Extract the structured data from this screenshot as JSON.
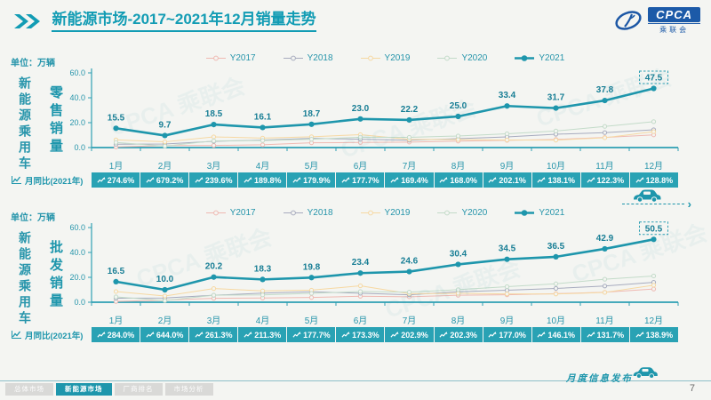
{
  "page": {
    "page_number": "7",
    "background": "#f4f5f2"
  },
  "header": {
    "title_bold": "新能源市场",
    "title_rest": "-2017~2021年12月销量走势",
    "logo_text": "CPCA",
    "logo_sub": "乘联会"
  },
  "icons": {
    "double_chevron": "»",
    "trend_up": "zigzag-arrow",
    "car": "car-silhouette",
    "mini_chart": "line-chart-in-axis"
  },
  "colors": {
    "accent": "#1E96AC",
    "accent_dark": "#187E95",
    "axis": "#2E9FB3",
    "yoy_bg": "#29A2B4",
    "Y2017": "#EFB9B2",
    "Y2018": "#A7ABBE",
    "Y2019": "#F6D8A2",
    "Y2020": "#C3DBC9",
    "Y2021": "#1E96AC"
  },
  "watermark": "CPCA 乘联会",
  "chart_data": [
    {
      "type": "line",
      "panel_title": "零售销量",
      "side_label": "新能源乘用车",
      "unit": "单位：万辆",
      "categories": [
        "1月",
        "2月",
        "3月",
        "4月",
        "5月",
        "6月",
        "7月",
        "8月",
        "9月",
        "10月",
        "11月",
        "12月"
      ],
      "ylim": [
        0,
        60
      ],
      "y_ticks": [
        0,
        20,
        40,
        60
      ],
      "legend_position": "top",
      "grid": false,
      "highlight_series": "Y2021",
      "series": [
        {
          "name": "Y2017",
          "values": [
            0.5,
            1.6,
            1.7,
            2.2,
            3.8,
            4.1,
            4.4,
            5.2,
            5.8,
            6.5,
            8.1,
            10.2
          ]
        },
        {
          "name": "Y2018",
          "values": [
            2.7,
            2.9,
            5.0,
            6.0,
            7.4,
            6.7,
            5.9,
            7.1,
            8.6,
            10.7,
            12.0,
            14.3
          ]
        },
        {
          "name": "Y2019",
          "values": [
            6.2,
            4.6,
            8.6,
            7.6,
            8.7,
            10.4,
            6.6,
            6.4,
            6.1,
            6.0,
            7.9,
            12.8
          ]
        },
        {
          "name": "Y2020",
          "values": [
            4.1,
            1.2,
            5.4,
            5.6,
            6.7,
            8.3,
            8.2,
            9.3,
            11.1,
            13.3,
            17.0,
            20.8
          ]
        },
        {
          "name": "Y2021",
          "values": [
            15.5,
            9.7,
            18.5,
            16.1,
            18.7,
            23.0,
            22.2,
            25.0,
            33.4,
            31.7,
            37.8,
            47.5
          ]
        }
      ],
      "yoy_label": "月同比(2021年)",
      "yoy_values": [
        "274.6%",
        "679.2%",
        "239.6%",
        "189.8%",
        "179.9%",
        "177.7%",
        "169.4%",
        "168.0%",
        "202.1%",
        "138.1%",
        "122.3%",
        "128.8%"
      ]
    },
    {
      "type": "line",
      "panel_title": "批发销量",
      "side_label": "新能源乘用车",
      "unit": "单位：万辆",
      "categories": [
        "1月",
        "2月",
        "3月",
        "4月",
        "5月",
        "6月",
        "7月",
        "8月",
        "9月",
        "10月",
        "11月",
        "12月"
      ],
      "ylim": [
        0,
        60
      ],
      "y_ticks": [
        0,
        20,
        40,
        60
      ],
      "legend_position": "top",
      "grid": false,
      "highlight_series": "Y2021",
      "series": [
        {
          "name": "Y2017",
          "values": [
            0.6,
            1.7,
            3.1,
            3.4,
            3.8,
            4.8,
            4.4,
            5.6,
            6.0,
            6.9,
            8.0,
            10.6
          ]
        },
        {
          "name": "Y2018",
          "values": [
            3.2,
            3.4,
            5.6,
            7.3,
            8.4,
            7.2,
            6.0,
            8.4,
            9.6,
            11.1,
            13.0,
            16.0
          ]
        },
        {
          "name": "Y2019",
          "values": [
            8.6,
            5.0,
            11.0,
            9.1,
            9.7,
            13.2,
            6.9,
            7.1,
            6.7,
            6.6,
            7.9,
            13.7
          ]
        },
        {
          "name": "Y2020",
          "values": [
            4.3,
            1.3,
            5.6,
            5.9,
            7.1,
            8.6,
            8.1,
            10.1,
            12.5,
            14.8,
            18.5,
            21.1
          ]
        },
        {
          "name": "Y2021",
          "values": [
            16.5,
            10.0,
            20.2,
            18.3,
            19.8,
            23.4,
            24.6,
            30.4,
            34.5,
            36.5,
            42.9,
            50.5
          ]
        }
      ],
      "yoy_label": "月同比(2021年)",
      "yoy_values": [
        "284.0%",
        "644.0%",
        "261.3%",
        "211.3%",
        "177.7%",
        "173.3%",
        "202.9%",
        "202.3%",
        "177.0%",
        "146.1%",
        "131.7%",
        "138.9%"
      ]
    }
  ],
  "footer": {
    "tabs": [
      {
        "label": "总体市场",
        "active": false
      },
      {
        "label": "新能源市场",
        "active": true
      },
      {
        "label": "厂商排名",
        "active": false
      },
      {
        "label": "市场分析",
        "active": false
      }
    ],
    "release_label": "月度信息发布",
    "page_number": "7"
  }
}
